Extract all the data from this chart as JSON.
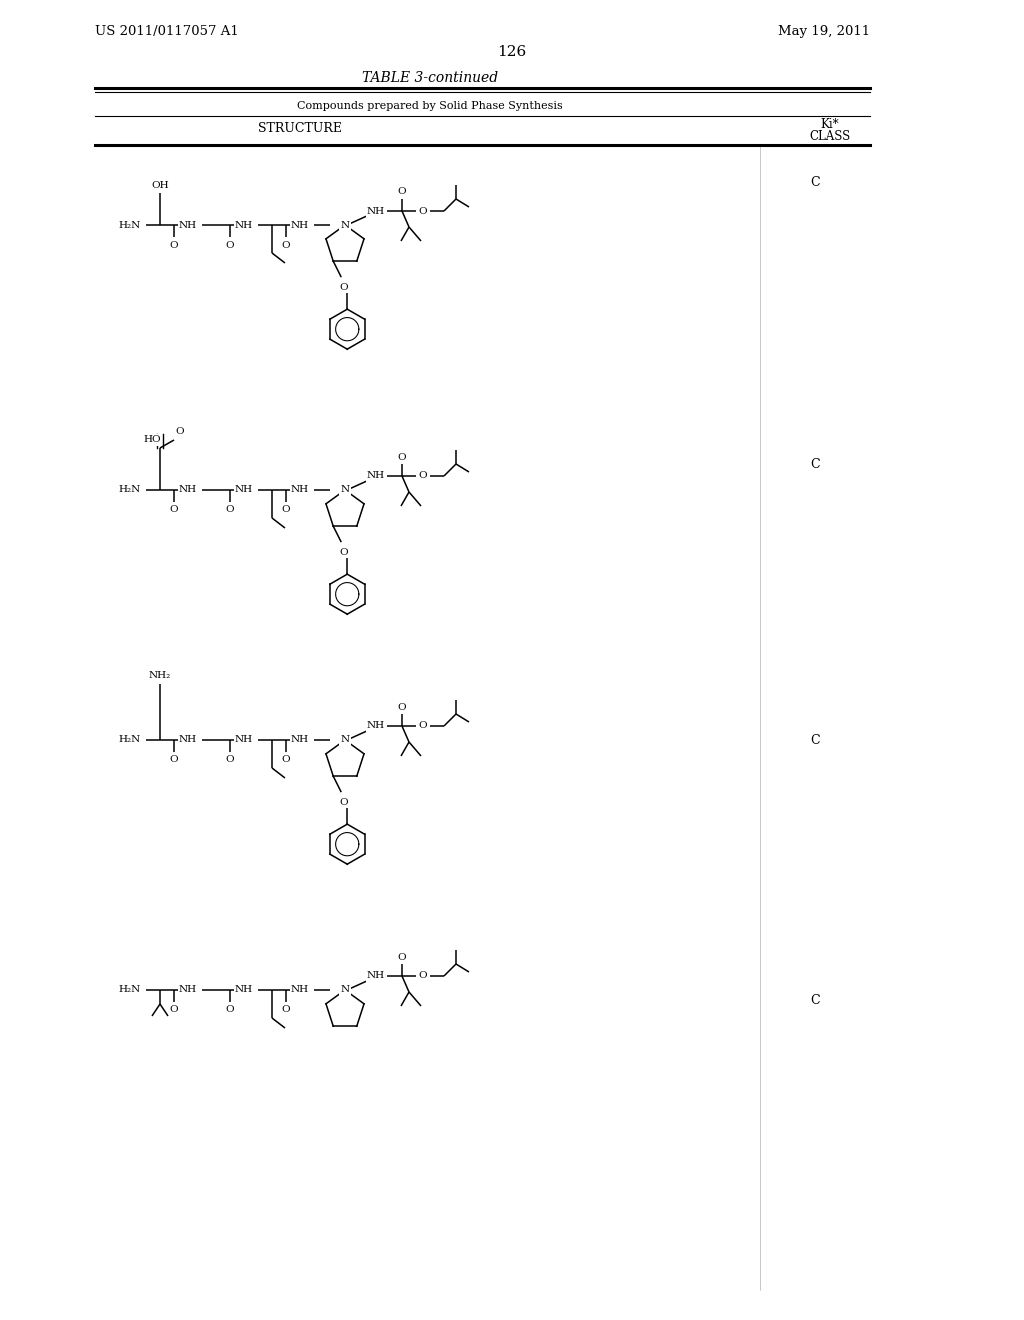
{
  "page_header_left": "US 2011/0117057 A1",
  "page_header_right": "May 19, 2011",
  "page_number": "126",
  "table_title": "TABLE 3-continued",
  "table_subtitle": "Compounds prepared by Solid Phase Synthesis",
  "col1_header": "STRUCTURE",
  "col2_header": "Ki*\nCLASS",
  "class_values": [
    "C",
    "C",
    "C",
    "C"
  ],
  "bg_color": "#ffffff",
  "text_color": "#000000",
  "font_family": "serif"
}
